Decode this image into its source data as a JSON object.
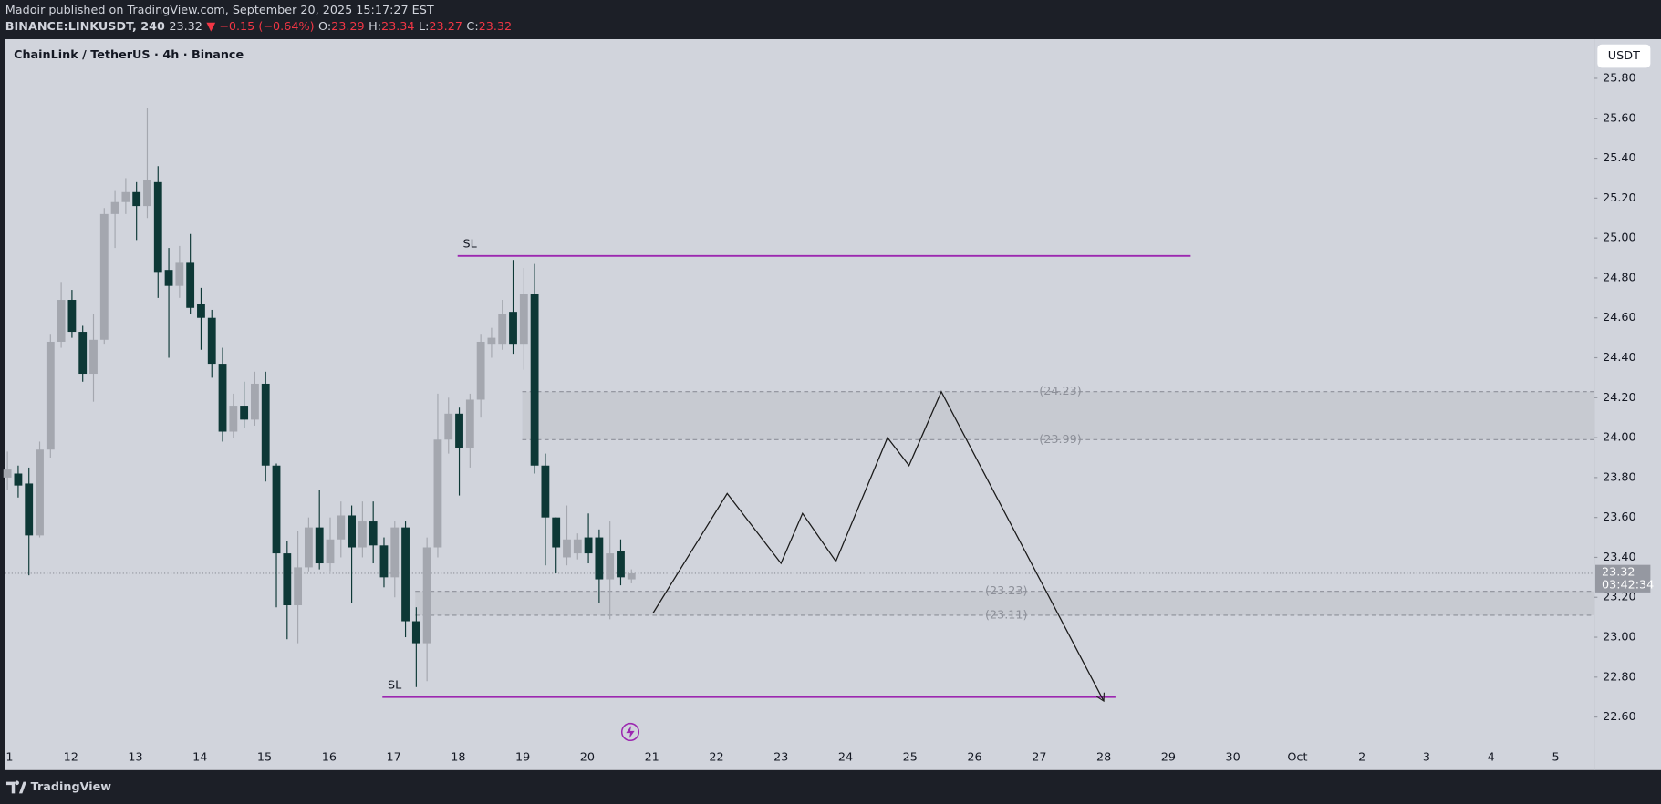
{
  "header": {
    "publisher": "Madoir published on TradingView.com, September 20, 2025 15:17:27 EST",
    "symbol": "BINANCE:LINKUSDT, 240",
    "last": 23.32,
    "change": "▼ −0.15 (−0.64%)",
    "ohlc": [
      {
        "label": "O:",
        "value": 23.29
      },
      {
        "label": "H:",
        "value": 23.34
      },
      {
        "label": "L:",
        "value": 23.27
      },
      {
        "label": "C:",
        "value": 23.32
      }
    ]
  },
  "chart_data": {
    "type": "candlestick",
    "title": "ChainLink / TetherUS · 4h · Binance",
    "currency": "USDT",
    "categories": [
      "1",
      "12",
      "13",
      "14",
      "15",
      "16",
      "17",
      "18",
      "19",
      "20",
      "21",
      "22",
      "23",
      "24",
      "25",
      "26",
      "27",
      "28",
      "29",
      "30",
      "Oct",
      "2",
      "3",
      "4",
      "5"
    ],
    "open": [
      23.8,
      23.82,
      23.77,
      23.51,
      23.94,
      24.48,
      24.69,
      24.53,
      24.32,
      24.49,
      25.12,
      25.18,
      25.23,
      25.16,
      25.28,
      24.84,
      24.76,
      24.88,
      24.67,
      24.6,
      24.37,
      24.03,
      24.16,
      24.09,
      24.27,
      23.86,
      23.42,
      23.16,
      23.35,
      23.55,
      23.37,
      23.49,
      23.61,
      23.45,
      23.58,
      23.46,
      23.3,
      23.55,
      23.08,
      22.97,
      23.45,
      23.99,
      24.12,
      23.95,
      24.19,
      24.47,
      24.47,
      24.63,
      24.47,
      24.72,
      23.86,
      23.6,
      23.4,
      23.42,
      23.5,
      23.5,
      23.29,
      23.43,
      23.29
    ],
    "high": [
      23.93,
      23.86,
      23.85,
      23.98,
      24.52,
      24.78,
      24.74,
      24.56,
      24.62,
      25.15,
      25.24,
      25.3,
      25.28,
      25.65,
      25.36,
      24.95,
      24.96,
      25.02,
      24.75,
      24.64,
      24.45,
      24.22,
      24.28,
      24.33,
      24.33,
      23.87,
      23.48,
      23.53,
      23.6,
      23.74,
      23.6,
      23.68,
      23.66,
      23.68,
      23.68,
      23.5,
      23.58,
      23.58,
      23.15,
      23.5,
      24.22,
      24.2,
      24.15,
      24.22,
      24.52,
      24.55,
      24.69,
      24.89,
      24.85,
      24.87,
      23.92,
      23.6,
      23.66,
      23.52,
      23.62,
      23.54,
      23.58,
      23.49,
      23.34
    ],
    "low": [
      23.74,
      23.7,
      23.31,
      23.5,
      23.9,
      24.45,
      24.5,
      24.28,
      24.18,
      24.47,
      24.95,
      25.12,
      24.99,
      25.1,
      24.7,
      24.4,
      24.7,
      24.62,
      24.44,
      24.3,
      23.98,
      24.0,
      24.05,
      24.06,
      23.78,
      23.15,
      22.99,
      22.97,
      23.33,
      23.34,
      23.33,
      23.4,
      23.17,
      23.4,
      23.37,
      23.25,
      23.2,
      23.0,
      22.75,
      22.78,
      23.4,
      23.92,
      23.71,
      23.85,
      24.1,
      24.4,
      24.44,
      24.42,
      24.34,
      23.82,
      23.36,
      23.32,
      23.36,
      23.39,
      23.37,
      23.17,
      23.09,
      23.26,
      23.27
    ],
    "close": [
      23.84,
      23.76,
      23.51,
      23.94,
      24.48,
      24.69,
      24.53,
      24.32,
      24.49,
      25.12,
      25.18,
      25.23,
      25.16,
      25.29,
      24.83,
      24.76,
      24.88,
      24.65,
      24.6,
      24.37,
      24.03,
      24.16,
      24.09,
      24.27,
      23.86,
      23.42,
      23.16,
      23.35,
      23.55,
      23.37,
      23.49,
      23.61,
      23.45,
      23.58,
      23.46,
      23.3,
      23.55,
      23.08,
      22.97,
      23.45,
      23.99,
      24.12,
      23.95,
      24.19,
      24.48,
      24.5,
      24.62,
      24.47,
      24.72,
      23.86,
      23.6,
      23.45,
      23.49,
      23.49,
      23.42,
      23.29,
      23.42,
      23.3,
      23.32
    ],
    "colors": {
      "up": "#a4a7af",
      "down": "#0d3836"
    },
    "ylim": [
      22.46,
      26.0
    ],
    "yticks": [
      {
        "value": 25.8,
        "label": "25.80"
      },
      {
        "value": 25.6,
        "label": "25.60"
      },
      {
        "value": 25.4,
        "label": "25.40"
      },
      {
        "value": 25.2,
        "label": "25.20"
      },
      {
        "value": 25.0,
        "label": "25.00"
      },
      {
        "value": 24.8,
        "label": "24.80"
      },
      {
        "value": 24.6,
        "label": "24.60"
      },
      {
        "value": 24.4,
        "label": "24.40"
      },
      {
        "value": 24.2,
        "label": "24.20"
      },
      {
        "value": 24.0,
        "label": "24.00"
      },
      {
        "value": 23.8,
        "label": "23.80"
      },
      {
        "value": 23.6,
        "label": "23.60"
      },
      {
        "value": 23.4,
        "label": "23.40"
      },
      {
        "value": 23.2,
        "label": "23.20"
      },
      {
        "value": 23.0,
        "label": "23.00"
      },
      {
        "value": 22.8,
        "label": "22.80"
      },
      {
        "value": 22.6,
        "label": "22.60"
      }
    ],
    "last_price": 23.32,
    "countdown": "03:42:34",
    "levels": [
      {
        "label": "SL",
        "value": 24.91,
        "color": "#9c27b0"
      },
      {
        "label": "SL",
        "value": 22.7,
        "color": "#9c27b0"
      }
    ],
    "zones": [
      {
        "top": {
          "value": 24.23,
          "label": "(24.23)"
        },
        "bottom": {
          "value": 23.99,
          "label": "(23.99)"
        }
      },
      {
        "top": {
          "value": 23.23,
          "label": "(23.23)"
        },
        "bottom": {
          "value": 23.11,
          "label": "(23.11)"
        }
      }
    ],
    "projection": [
      23.12,
      23.72,
      23.37,
      23.62,
      23.38,
      24.0,
      23.86,
      24.23,
      22.68
    ]
  },
  "footer": {
    "brand": "TradingView"
  }
}
